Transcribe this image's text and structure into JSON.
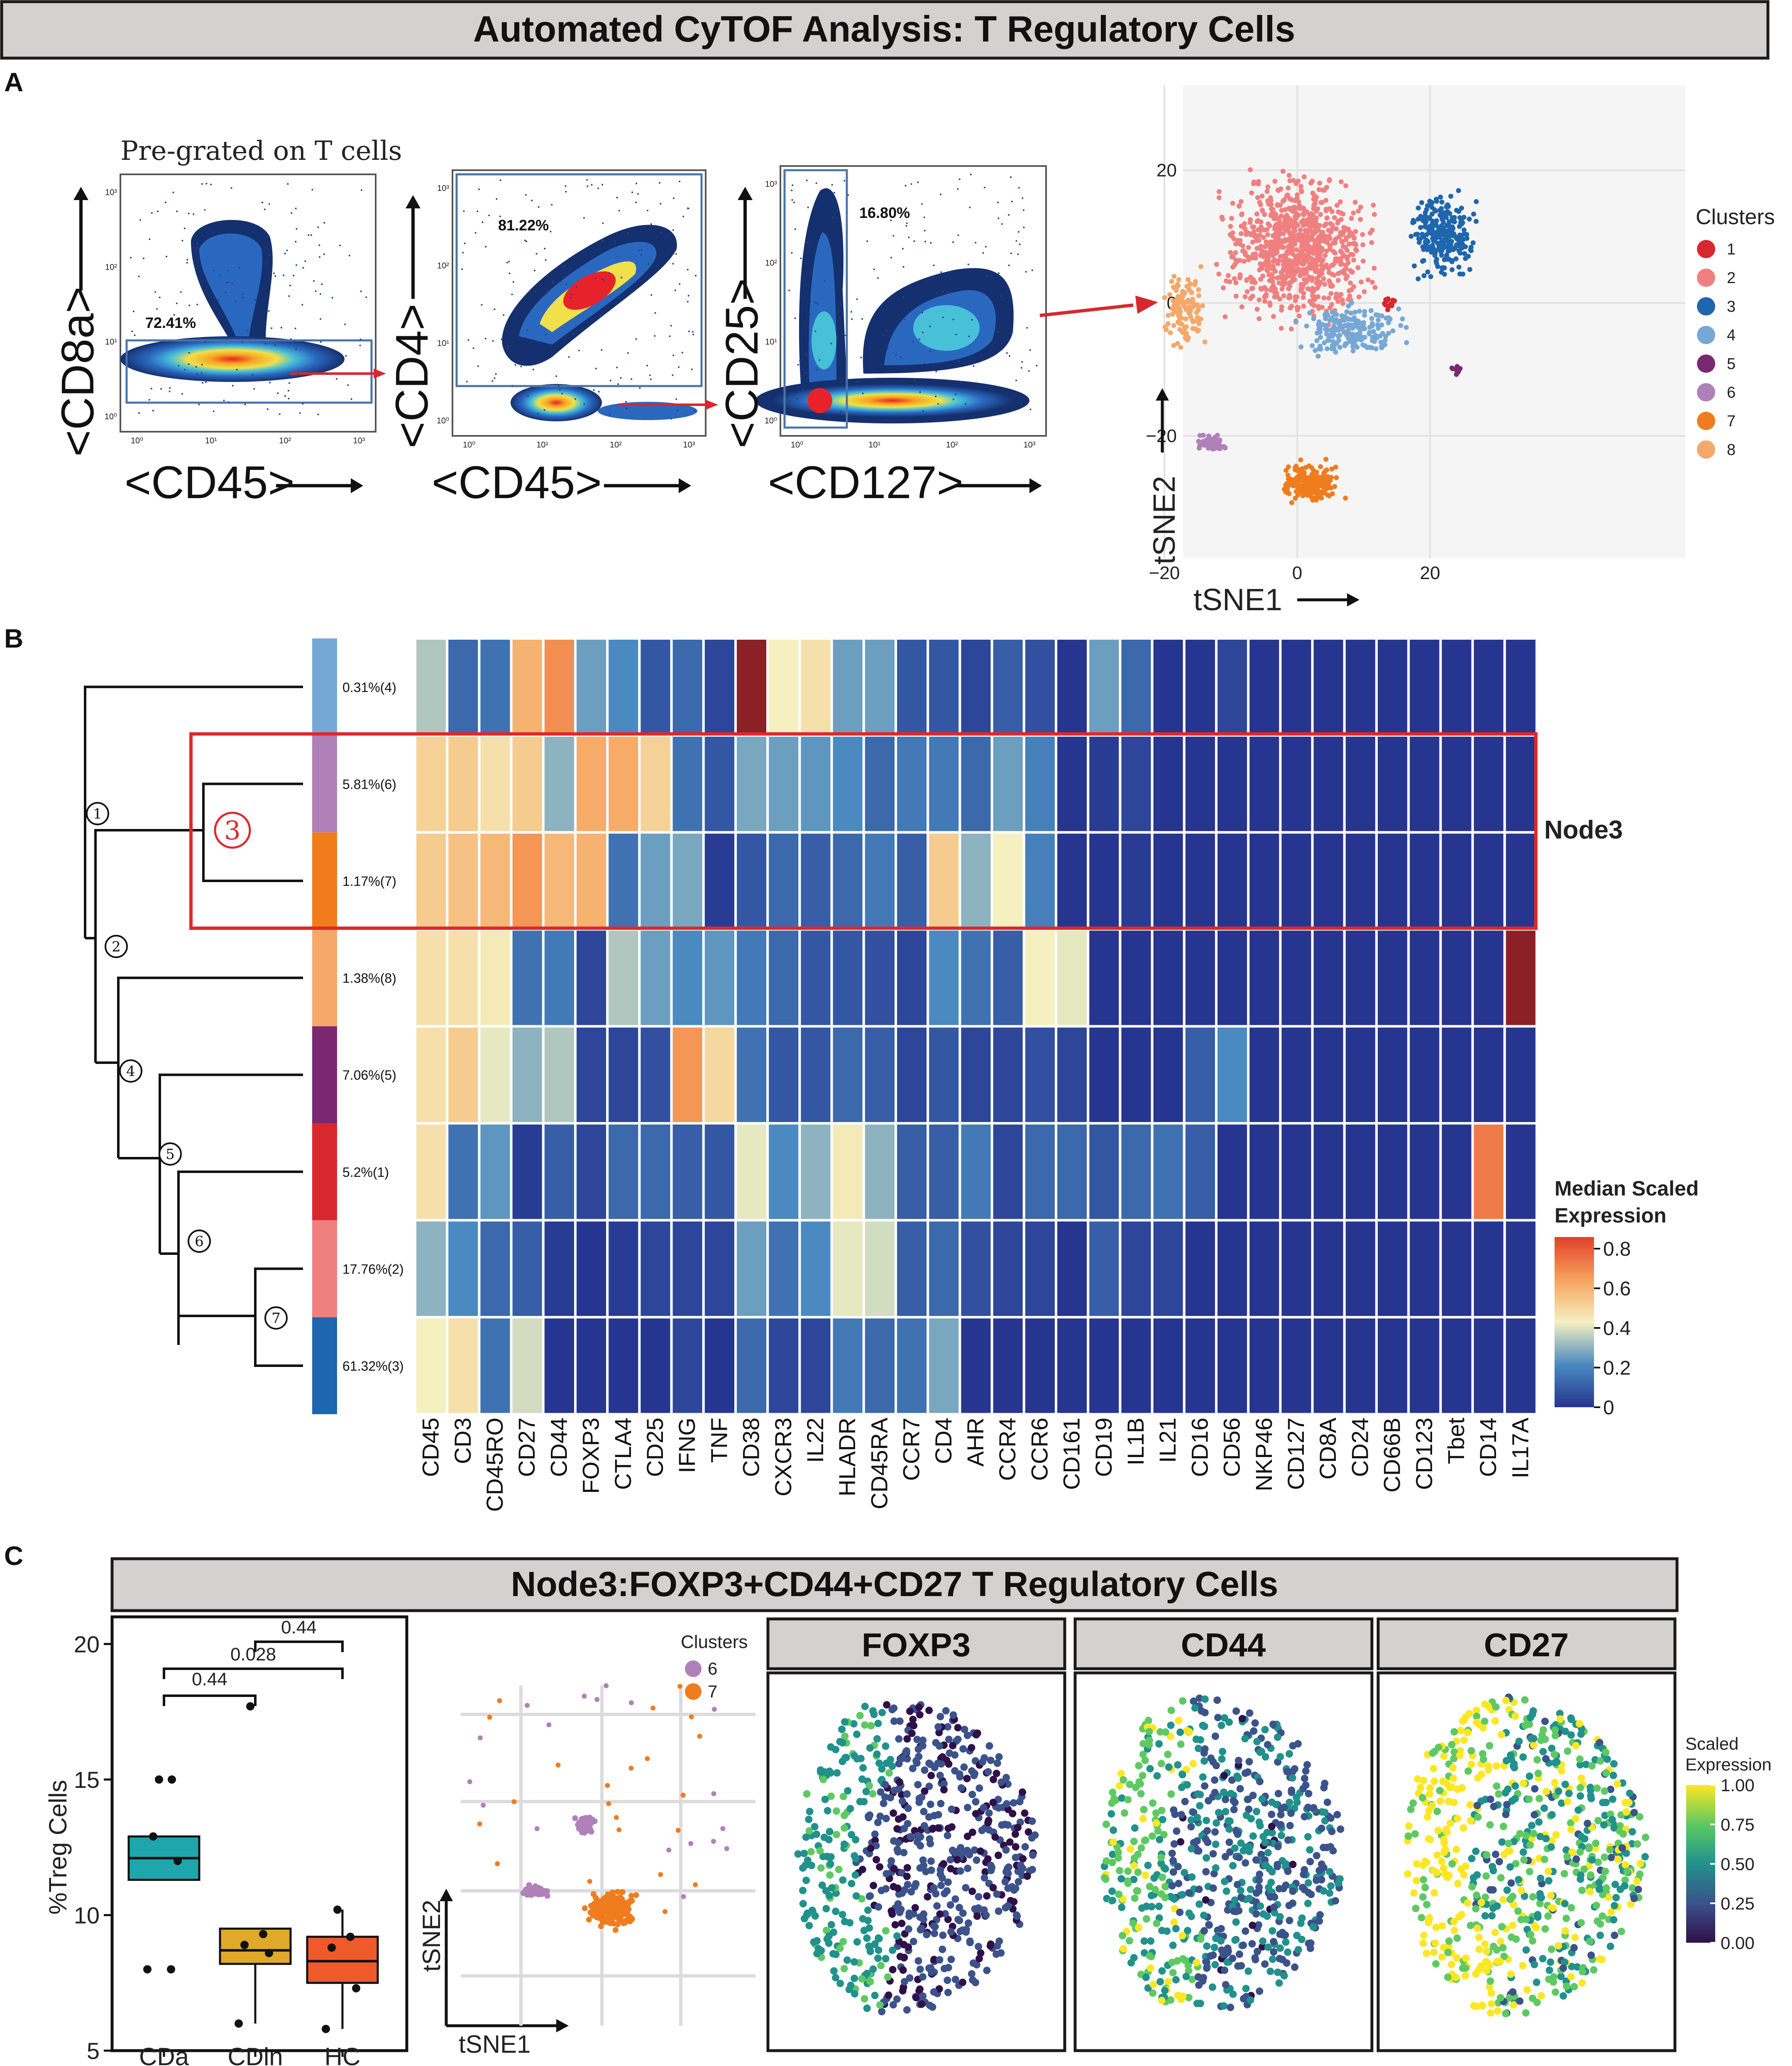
{
  "figure_title": "Automated CyTOF Analysis: T Regulatory Cells",
  "panel_labels": {
    "a": "A",
    "b": "B",
    "c": "C"
  },
  "panelA": {
    "pregate_text": "Pre-grated on T cells",
    "plots": [
      {
        "ylabel": "<CD8a>",
        "xlabel": "<CD45>",
        "gate_pct": "72.41%"
      },
      {
        "ylabel": "<CD4>",
        "xlabel": "<CD45>",
        "gate_pct": "81.22%"
      },
      {
        "ylabel": "<CD25>",
        "xlabel": "<CD127>",
        "gate_pct": "16.80%"
      }
    ],
    "tick_labels": [
      "10⁰",
      "10¹",
      "10²",
      "10³"
    ],
    "tsne": {
      "xlabel": "tSNE1",
      "ylabel": "tSNE2",
      "x_ticks": [
        "−20",
        "0",
        "20"
      ],
      "y_ticks": [
        "20",
        "0",
        "−20"
      ],
      "legend_title": "Clusters",
      "clusters": [
        {
          "id": "1",
          "color": "#d7282f"
        },
        {
          "id": "2",
          "color": "#f08080"
        },
        {
          "id": "3",
          "color": "#1e66ad"
        },
        {
          "id": "4",
          "color": "#76a8d6"
        },
        {
          "id": "5",
          "color": "#7b2873"
        },
        {
          "id": "6",
          "color": "#b080b8"
        },
        {
          "id": "7",
          "color": "#f07c1e"
        },
        {
          "id": "8",
          "color": "#f5a86a"
        }
      ]
    }
  },
  "chart_data": [
    {
      "type": "heatmap",
      "title": "Median Scaled Expression",
      "legend_title": "Median Scaled Expression",
      "legend_ticks": [
        "0.8",
        "0.6",
        "0.4",
        "0.2",
        "0"
      ],
      "node_label": "Node3",
      "highlight_node_number": "3",
      "node_numbers": [
        "1",
        "2",
        "4",
        "5",
        "6",
        "7"
      ],
      "columns": [
        "CD45",
        "CD3",
        "CD45RO",
        "CD27",
        "CD44",
        "FOXP3",
        "CTLA4",
        "CD25",
        "IFNG",
        "TNF",
        "CD38",
        "CXCR3",
        "IL22",
        "HLADR",
        "CD45RA",
        "CCR7",
        "CD4",
        "AHR",
        "CCR4",
        "CCR6",
        "CD161",
        "CD19",
        "IL1B",
        "IL21",
        "CD16",
        "CD56",
        "NKP46",
        "CD127",
        "CD8A",
        "CD24",
        "CD66B",
        "CD123",
        "Tbet",
        "CD14",
        "IL17A"
      ],
      "rows": [
        {
          "label": "0.31%(4)",
          "cluster_color": "#76a8d6",
          "values": [
            0.4,
            0.15,
            0.18,
            0.7,
            0.8,
            0.3,
            0.25,
            0.1,
            0.15,
            0.05,
            0.95,
            0.5,
            0.55,
            0.3,
            0.3,
            0.1,
            0.1,
            0.05,
            0.12,
            0.08,
            0.0,
            0.3,
            0.15,
            0.0,
            0.0,
            0.05,
            0.0,
            0.0,
            0.0,
            0.0,
            0.0,
            0.0,
            0.0,
            0.0,
            0.0
          ]
        },
        {
          "label": "5.81%(6)",
          "cluster_color": "#b080b8",
          "values": [
            0.6,
            0.62,
            0.55,
            0.62,
            0.35,
            0.72,
            0.72,
            0.6,
            0.18,
            0.1,
            0.32,
            0.3,
            0.28,
            0.25,
            0.15,
            0.2,
            0.2,
            0.15,
            0.3,
            0.22,
            0.0,
            0.02,
            0.05,
            0.0,
            0.0,
            0.0,
            0.0,
            0.0,
            0.0,
            0.0,
            0.0,
            0.0,
            0.0,
            0.0,
            0.0
          ]
        },
        {
          "label": "1.17%(7)",
          "cluster_color": "#f07c1e",
          "values": [
            0.62,
            0.65,
            0.68,
            0.78,
            0.68,
            0.7,
            0.18,
            0.3,
            0.32,
            0.02,
            0.1,
            0.15,
            0.12,
            0.15,
            0.2,
            0.12,
            0.62,
            0.35,
            0.5,
            0.22,
            0.0,
            0.0,
            0.02,
            0.0,
            0.0,
            0.0,
            0.0,
            0.0,
            0.0,
            0.0,
            0.0,
            0.0,
            0.0,
            0.0,
            0.0
          ]
        },
        {
          "label": "1.38%(8)",
          "cluster_color": "#f5a86a",
          "values": [
            0.55,
            0.55,
            0.52,
            0.18,
            0.2,
            0.05,
            0.4,
            0.3,
            0.25,
            0.28,
            0.2,
            0.15,
            0.1,
            0.1,
            0.08,
            0.05,
            0.25,
            0.18,
            0.12,
            0.5,
            0.48,
            0.0,
            0.0,
            0.0,
            0.0,
            0.0,
            0.0,
            0.0,
            0.0,
            0.0,
            0.0,
            0.0,
            0.0,
            0.0,
            0.95
          ]
        },
        {
          "label": "7.06%(5)",
          "cluster_color": "#7b2873",
          "values": [
            0.55,
            0.62,
            0.48,
            0.35,
            0.4,
            0.05,
            0.05,
            0.08,
            0.78,
            0.58,
            0.18,
            0.1,
            0.1,
            0.15,
            0.12,
            0.05,
            0.1,
            0.05,
            0.05,
            0.08,
            0.05,
            0.0,
            0.0,
            0.0,
            0.12,
            0.25,
            0.0,
            0.0,
            0.0,
            0.0,
            0.0,
            0.0,
            0.0,
            0.0,
            0.0
          ]
        },
        {
          "label": "5.2%(1)",
          "cluster_color": "#d7282f",
          "values": [
            0.55,
            0.18,
            0.28,
            0.02,
            0.12,
            0.05,
            0.15,
            0.15,
            0.12,
            0.1,
            0.48,
            0.25,
            0.35,
            0.52,
            0.35,
            0.12,
            0.12,
            0.2,
            0.05,
            0.15,
            0.15,
            0.1,
            0.15,
            0.18,
            0.12,
            0.0,
            0.0,
            0.0,
            0.0,
            0.0,
            0.0,
            0.0,
            0.0,
            0.85,
            0.0
          ]
        },
        {
          "label": "17.76%(2)",
          "cluster_color": "#f08080",
          "values": [
            0.35,
            0.25,
            0.15,
            0.12,
            0.02,
            0.0,
            0.02,
            0.05,
            0.05,
            0.05,
            0.3,
            0.18,
            0.25,
            0.48,
            0.45,
            0.12,
            0.15,
            0.08,
            0.05,
            0.05,
            0.0,
            0.12,
            0.05,
            0.05,
            0.0,
            0.0,
            0.0,
            0.0,
            0.0,
            0.0,
            0.0,
            0.0,
            0.0,
            0.0,
            0.0
          ]
        },
        {
          "label": "61.32%(3)",
          "cluster_color": "#1e66ad",
          "values": [
            0.5,
            0.55,
            0.18,
            0.45,
            0.0,
            0.0,
            0.0,
            0.0,
            0.05,
            0.0,
            0.15,
            0.05,
            0.05,
            0.2,
            0.15,
            0.18,
            0.32,
            0.0,
            0.0,
            0.0,
            0.0,
            0.0,
            0.0,
            0.0,
            0.0,
            0.0,
            0.0,
            0.0,
            0.0,
            0.0,
            0.0,
            0.0,
            0.0,
            0.0,
            0.0
          ]
        }
      ]
    },
    {
      "type": "box",
      "title": "Node3:FOXP3+CD44+CD27 T Regulatory Cells",
      "ylabel": "%Treg Cells",
      "ylim": [
        5,
        21
      ],
      "y_ticks": [
        5,
        10,
        15,
        20
      ],
      "categories": [
        "CDa",
        "CDin",
        "HC"
      ],
      "colors": [
        "#1fa6ad",
        "#e0a92a",
        "#ef5a2a"
      ],
      "boxes": [
        {
          "q1": 11.3,
          "median": 12.1,
          "q3": 12.9,
          "whisker_low": 11.3,
          "whisker_high": 12.9,
          "points": [
            15.0,
            15.0,
            12.9,
            12.0,
            8.0,
            8.0
          ]
        },
        {
          "q1": 8.2,
          "median": 8.7,
          "q3": 9.5,
          "whisker_low": 6.0,
          "whisker_high": 9.5,
          "points": [
            17.7,
            9.3,
            8.9,
            8.6,
            6.0
          ]
        },
        {
          "q1": 7.5,
          "median": 8.3,
          "q3": 9.2,
          "whisker_low": 5.8,
          "whisker_high": 10.2,
          "points": [
            10.2,
            9.2,
            8.8,
            7.3,
            5.8
          ]
        }
      ],
      "comparisons": [
        {
          "from": "CDin",
          "to": "HC",
          "p": "0.44"
        },
        {
          "from": "CDa",
          "to": "HC",
          "p": "0.028"
        },
        {
          "from": "CDa",
          "to": "CDin",
          "p": "0.44"
        }
      ]
    }
  ],
  "panelC": {
    "mini_tsne": {
      "xlabel": "tSNE1",
      "ylabel": "tSNE2",
      "legend_title": "Clusters",
      "clusters": [
        {
          "id": "6",
          "color": "#b080b8"
        },
        {
          "id": "7",
          "color": "#f07c1e"
        }
      ]
    },
    "feature_titles": [
      "FOXP3",
      "CD44",
      "CD27"
    ],
    "scale_title_1": "Scaled",
    "scale_title_2": "Expression",
    "scale_ticks": [
      "1.00",
      "0.75",
      "0.50",
      "0.25",
      "0.00"
    ]
  }
}
